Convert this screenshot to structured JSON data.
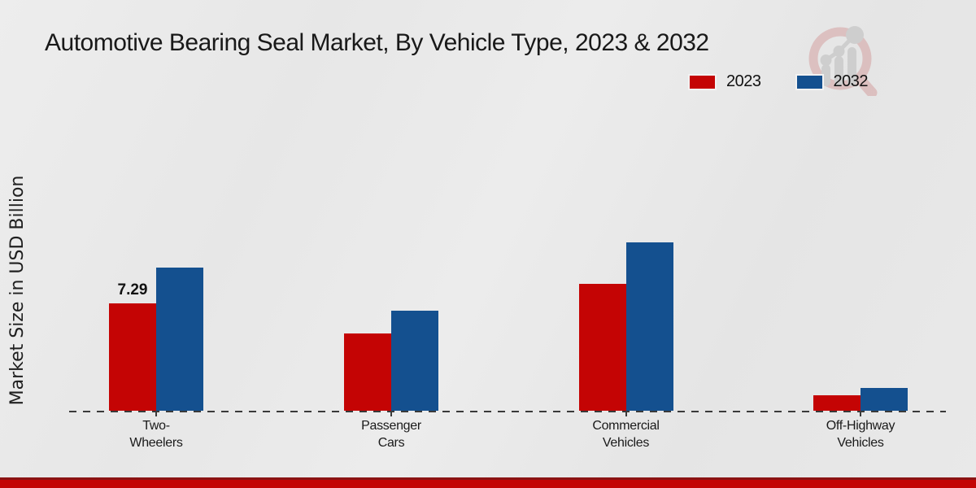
{
  "title": "Automotive Bearing Seal Market, By Vehicle Type, 2023 & 2032",
  "y_axis_label": "Market Size in USD Billion",
  "legend": {
    "items": [
      {
        "label": "2023",
        "color": "#c40404"
      },
      {
        "label": "2032",
        "color": "#14508f"
      }
    ]
  },
  "watermark_icon": "magnifier-bar-chart-logo",
  "colors": {
    "bar_2023": "#c40404",
    "bar_2032": "#14508f",
    "background": "#e9e9e9",
    "footer_stripe": "#c30505",
    "baseline": "#3a3a3a",
    "text": "#1a1a1a"
  },
  "chart_data": {
    "type": "bar",
    "categories": [
      "Two-\nWheelers",
      "Passenger\nCars",
      "Commercial\nVehicles",
      "Off-Highway\nVehicles"
    ],
    "series": [
      {
        "name": "2023",
        "color": "#c40404",
        "values": [
          7.29,
          5.25,
          8.61,
          1.05
        ]
      },
      {
        "name": "2032",
        "color": "#14508f",
        "values": [
          9.72,
          6.79,
          11.43,
          1.55
        ]
      }
    ],
    "data_labels": [
      [
        "7.29",
        null,
        null,
        null
      ],
      [
        null,
        null,
        null,
        null
      ]
    ],
    "title": "Automotive Bearing Seal Market, By Vehicle Type, 2023 & 2032",
    "xlabel": "",
    "ylabel": "Market Size in USD Billion",
    "ylim": [
      0,
      13
    ],
    "grid": false,
    "y_axis_ticks_visible": false,
    "legend_position": "top-right",
    "baseline_style": "dashed"
  }
}
